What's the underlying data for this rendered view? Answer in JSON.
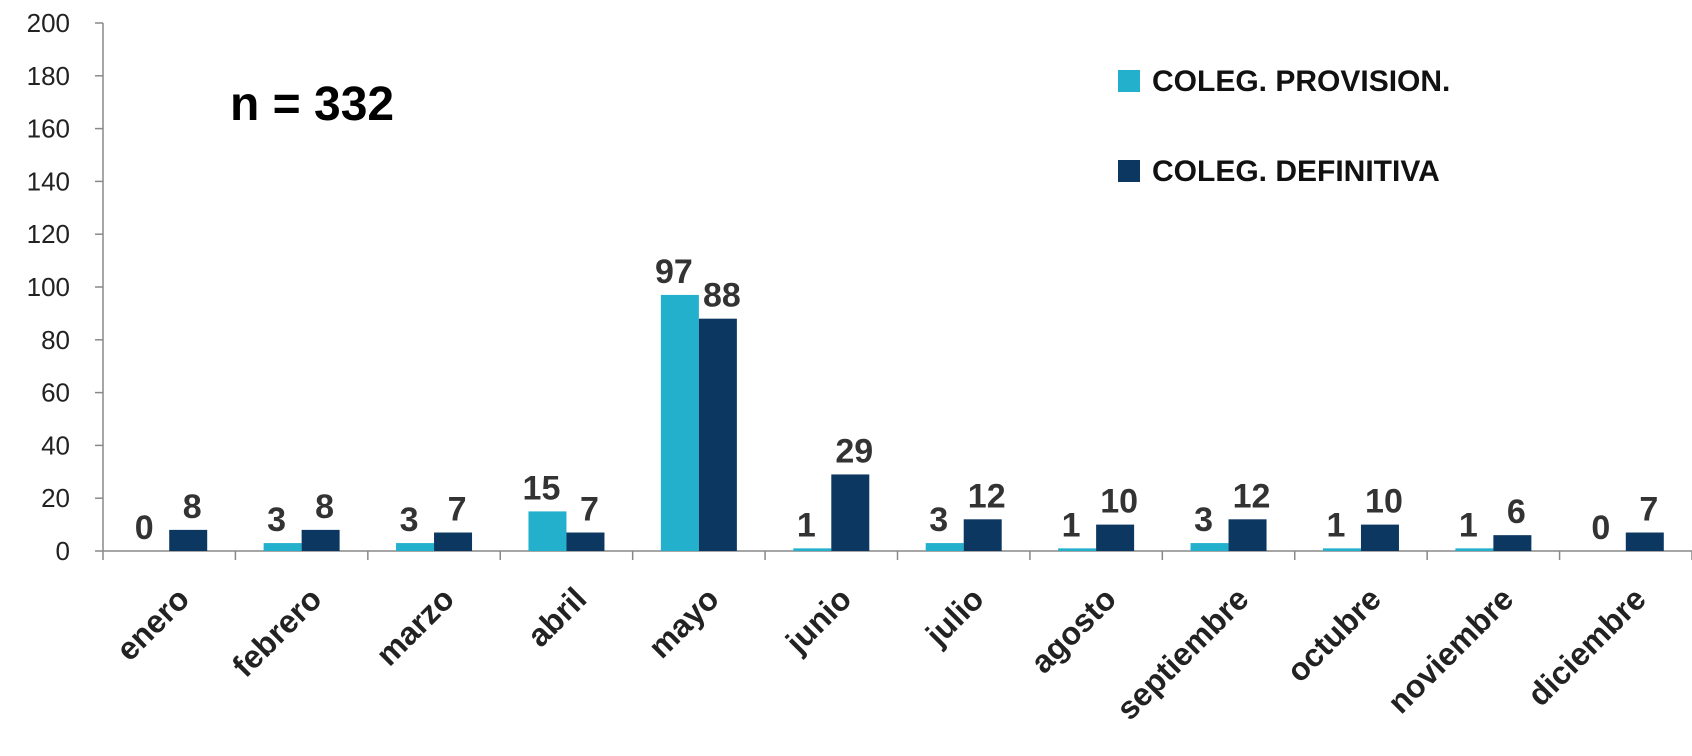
{
  "chart_data": {
    "type": "bar",
    "title": "",
    "xlabel": "",
    "ylabel": "",
    "ylim": [
      0,
      200
    ],
    "yticks": [
      0,
      20,
      40,
      60,
      80,
      100,
      120,
      140,
      160,
      180,
      200
    ],
    "grid": false,
    "legend_position": "top-right",
    "annotation": "n = 332",
    "categories": [
      "enero",
      "febrero",
      "marzo",
      "abril",
      "mayo",
      "junio",
      "julio",
      "agosto",
      "septiembre",
      "octubre",
      "noviembre",
      "diciembre"
    ],
    "series": [
      {
        "name": "COLEG. PROVISION.",
        "color": "#22B0CC",
        "values": [
          0,
          3,
          3,
          15,
          97,
          1,
          3,
          1,
          3,
          1,
          1,
          0
        ]
      },
      {
        "name": "COLEG. DEFINITIVA",
        "color": "#0B3761",
        "values": [
          8,
          8,
          7,
          7,
          88,
          29,
          12,
          10,
          12,
          10,
          6,
          7
        ]
      }
    ]
  }
}
